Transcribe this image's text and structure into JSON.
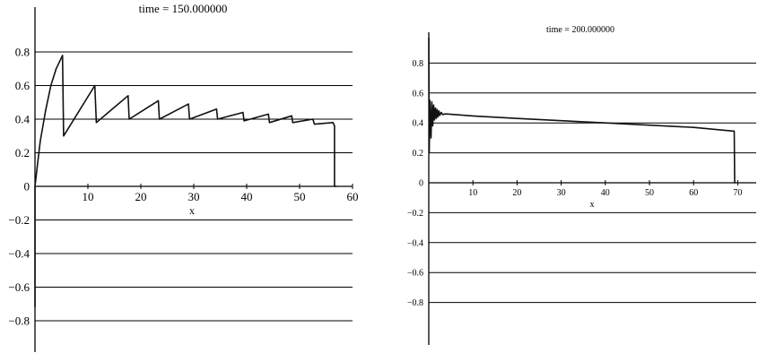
{
  "chart_data": [
    {
      "type": "line",
      "title": "time = 150.000000",
      "xlabel": "x",
      "ylabel": "",
      "xlim": [
        0,
        60
      ],
      "ylim": [
        -0.8,
        0.8
      ],
      "x_ticks": [
        10,
        20,
        30,
        40,
        50,
        60
      ],
      "y_ticks": [
        -0.8,
        -0.6,
        -0.4,
        -0.2,
        0,
        0.2,
        0.4,
        0.6,
        0.8
      ],
      "y_tick_labels": [
        "−0.8",
        "−0.6",
        "−0.4",
        "−0.2",
        "0",
        "0.2",
        "0.4",
        "0.6",
        "0.8"
      ],
      "grid": "horizontal",
      "series": [
        {
          "x": [
            0,
            0,
            0.5,
            1,
            2,
            3,
            4,
            5.2,
            5.4,
            11.3,
            11.6,
            17.6,
            17.8,
            23.3,
            23.5,
            29.0,
            29.2,
            34.3,
            34.5,
            39.3,
            39.5,
            44.1,
            44.3,
            48.5,
            48.7,
            52.5,
            52.8,
            56.3,
            56.6,
            56.6,
            57.0
          ],
          "y": [
            -0.72,
            0.0,
            0.14,
            0.27,
            0.45,
            0.6,
            0.7,
            0.78,
            0.3,
            0.6,
            0.38,
            0.54,
            0.4,
            0.51,
            0.4,
            0.49,
            0.4,
            0.46,
            0.4,
            0.44,
            0.39,
            0.43,
            0.38,
            0.42,
            0.38,
            0.4,
            0.37,
            0.38,
            0.36,
            0.0,
            0.0
          ]
        }
      ]
    },
    {
      "type": "line",
      "title": "time = 200.000000",
      "xlabel": "x",
      "ylabel": "",
      "xlim": [
        0,
        75
      ],
      "ylim": [
        -0.85,
        1.0
      ],
      "x_ticks": [
        10,
        20,
        30,
        40,
        50,
        60,
        70
      ],
      "y_ticks": [
        -0.8,
        -0.6,
        -0.4,
        -0.2,
        0,
        0.2,
        0.4,
        0.6,
        0.8
      ],
      "y_tick_labels": [
        "−0.8",
        "−0.6",
        "−0.4",
        "−0.2",
        "0",
        "0.2",
        "0.4",
        "0.6",
        "0.8"
      ],
      "grid": "horizontal",
      "series": [
        {
          "x": [
            0,
            0.1,
            0.25,
            0.5,
            0.7,
            0.9,
            1.1,
            1.3,
            1.5,
            1.7,
            1.9,
            2.1,
            2.3,
            2.5,
            2.8,
            3.2,
            3.6,
            4.0,
            10,
            20,
            30,
            40,
            50,
            60,
            69.2,
            69.3,
            69.5
          ],
          "y": [
            0.97,
            0.2,
            0.55,
            0.3,
            0.54,
            0.38,
            0.52,
            0.42,
            0.5,
            0.43,
            0.49,
            0.44,
            0.48,
            0.45,
            0.47,
            0.455,
            0.46,
            0.46,
            0.447,
            0.43,
            0.415,
            0.4,
            0.385,
            0.37,
            0.345,
            0.0,
            0.0
          ]
        }
      ]
    }
  ]
}
